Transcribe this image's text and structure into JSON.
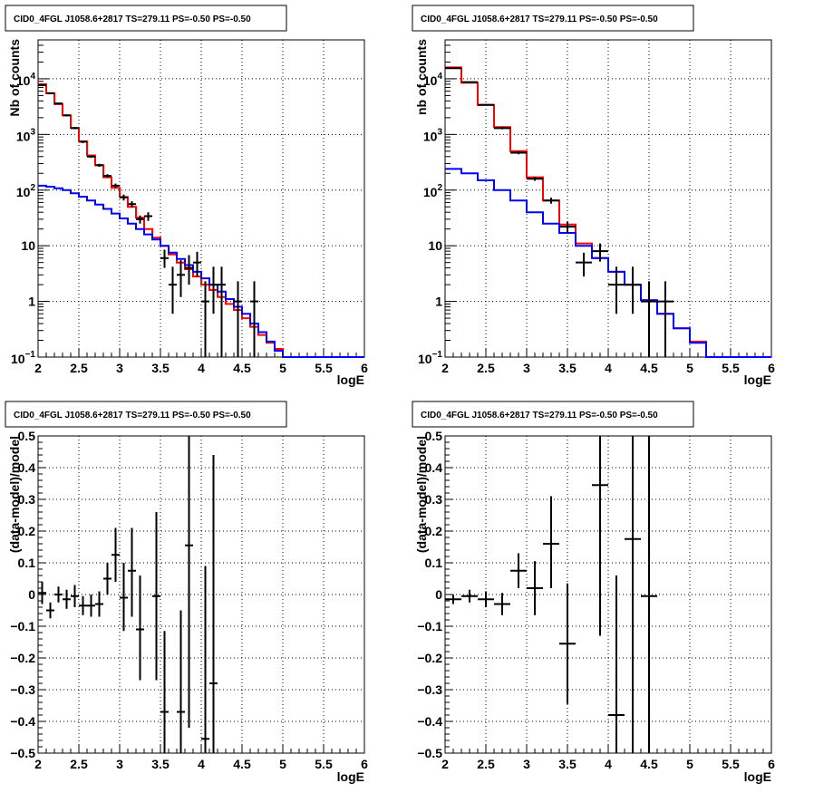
{
  "pads": [
    {
      "id": "pad-top-left",
      "title": "CID0_4FGL J1058.6+2817 TS=279.11 PS=-0.50 PS=-0.50",
      "chart_data": {
        "type": "histogram",
        "xlabel": "logE",
        "ylabel": "Nb of counts",
        "xlim": [
          2,
          6
        ],
        "ylim": [
          0.1,
          50000
        ],
        "log_y": true,
        "grid": true,
        "x_ticks": [
          "2",
          "2.5",
          "3",
          "3.5",
          "4",
          "4.5",
          "5",
          "5.5",
          "6"
        ],
        "y_ticks": [
          {
            "v": 0.1,
            "base": "10",
            "exp": "−1"
          },
          {
            "v": 1,
            "label": "1"
          },
          {
            "v": 10,
            "label": "10"
          },
          {
            "v": 100,
            "base": "10",
            "exp": "2"
          },
          {
            "v": 1000,
            "base": "10",
            "exp": "3"
          },
          {
            "v": 10000,
            "base": "10",
            "exp": "4"
          }
        ],
        "bin_edges": [
          2,
          2.1,
          2.2,
          2.3,
          2.4,
          2.5,
          2.6,
          2.7,
          2.8,
          2.9,
          3.0,
          3.1,
          3.2,
          3.3,
          3.4,
          3.5,
          3.6,
          3.7,
          3.8,
          3.9,
          4.0,
          4.1,
          4.2,
          4.3,
          4.4,
          4.5,
          4.6,
          4.7,
          4.8,
          4.9,
          5.0,
          5.1,
          5.2,
          5.3,
          5.4,
          5.5,
          5.6,
          5.7,
          5.8,
          5.9,
          6.0
        ],
        "series": [
          {
            "color": "#ff0000",
            "style": "step",
            "values": [
              8000,
              5500,
              3500,
              2200,
              1300,
              750,
              420,
              280,
              170,
              110,
              75,
              50,
              32,
              20,
              14,
              10,
              7,
              5,
              3.8,
              2.8,
              2.0,
              1.6,
              1.2,
              0.9,
              0.7,
              0.5,
              0.35,
              0.25,
              0.18,
              0.14,
              0.1,
              0.1,
              0.1,
              0.1,
              0.1,
              0.1,
              0.1,
              0.1,
              0.1,
              0.1
            ]
          },
          {
            "color": "#0000ff",
            "style": "step",
            "values": [
              120,
              115,
              108,
              100,
              88,
              76,
              65,
              55,
              46,
              38,
              31,
              25,
              20,
              16,
              13,
              10,
              7.5,
              5.8,
              4.5,
              3.4,
              2.6,
              2.0,
              1.5,
              1.1,
              0.8,
              0.6,
              0.4,
              0.28,
              0.19,
              0.13,
              0.1,
              0.1,
              0.1,
              0.1,
              0.1,
              0.1,
              0.1,
              0.1,
              0.1,
              0.1
            ]
          }
        ],
        "points": [
          {
            "x": 2.05,
            "y": 7700,
            "ylo": 7500,
            "yhi": 7900
          },
          {
            "x": 2.15,
            "y": 5500,
            "ylo": 5350,
            "yhi": 5650
          },
          {
            "x": 2.25,
            "y": 3600,
            "ylo": 3480,
            "yhi": 3720
          },
          {
            "x": 2.35,
            "y": 2200,
            "ylo": 2110,
            "yhi": 2290
          },
          {
            "x": 2.45,
            "y": 1300,
            "ylo": 1240,
            "yhi": 1360
          },
          {
            "x": 2.55,
            "y": 740,
            "ylo": 700,
            "yhi": 780
          },
          {
            "x": 2.65,
            "y": 400,
            "ylo": 380,
            "yhi": 420
          },
          {
            "x": 2.75,
            "y": 280,
            "ylo": 263,
            "yhi": 297
          },
          {
            "x": 2.85,
            "y": 180,
            "ylo": 167,
            "yhi": 193
          },
          {
            "x": 2.95,
            "y": 120,
            "ylo": 109,
            "yhi": 131
          },
          {
            "x": 3.05,
            "y": 74,
            "ylo": 65,
            "yhi": 83
          },
          {
            "x": 3.15,
            "y": 56,
            "ylo": 49,
            "yhi": 63
          },
          {
            "x": 3.25,
            "y": 30,
            "ylo": 25,
            "yhi": 35
          },
          {
            "x": 3.35,
            "y": 34,
            "ylo": 28,
            "yhi": 40
          },
          {
            "x": 3.55,
            "y": 6,
            "ylo": 4,
            "yhi": 8.5
          },
          {
            "x": 3.65,
            "y": 2,
            "ylo": 0.6,
            "yhi": 4.2
          },
          {
            "x": 3.75,
            "y": 3,
            "ylo": 1.2,
            "yhi": 5.5
          },
          {
            "x": 3.85,
            "y": 4,
            "ylo": 2,
            "yhi": 6.8
          },
          {
            "x": 3.95,
            "y": 5,
            "ylo": 2.8,
            "yhi": 7.8
          },
          {
            "x": 4.05,
            "y": 1,
            "ylo": 0.1,
            "yhi": 2.3
          },
          {
            "x": 4.15,
            "y": 2,
            "ylo": 0.6,
            "yhi": 4.2
          },
          {
            "x": 4.25,
            "y": 2,
            "ylo": 0.1,
            "yhi": 4.2
          },
          {
            "x": 4.45,
            "y": 1,
            "ylo": 0.1,
            "yhi": 2.3
          },
          {
            "x": 4.65,
            "y": 1,
            "ylo": 0.1,
            "yhi": 2.3
          }
        ]
      }
    },
    {
      "id": "pad-top-right",
      "title": "CID0_4FGL J1058.6+2817 TS=279.11 PS=-0.50 PS=-0.50",
      "chart_data": {
        "type": "histogram",
        "xlabel": "logE",
        "ylabel": "nb of counts",
        "xlim": [
          2,
          6
        ],
        "ylim": [
          0.1,
          50000
        ],
        "log_y": true,
        "grid": true,
        "x_ticks": [
          "2",
          "2.5",
          "3",
          "3.5",
          "4",
          "4.5",
          "5",
          "5.5",
          "6"
        ],
        "y_ticks": [
          {
            "v": 0.1,
            "base": "10",
            "exp": "−1"
          },
          {
            "v": 1,
            "label": "1"
          },
          {
            "v": 10,
            "label": "10"
          },
          {
            "v": 100,
            "base": "10",
            "exp": "2"
          },
          {
            "v": 1000,
            "base": "10",
            "exp": "3"
          },
          {
            "v": 10000,
            "base": "10",
            "exp": "4"
          }
        ],
        "bin_edges": [
          2,
          2.2,
          2.4,
          2.6,
          2.8,
          3.0,
          3.2,
          3.4,
          3.6,
          3.8,
          4.0,
          4.2,
          4.4,
          4.6,
          4.8,
          5.0,
          5.2,
          5.4,
          5.6,
          5.8,
          6.0
        ],
        "series": [
          {
            "color": "#ff0000",
            "style": "step",
            "values": [
              16000,
              8500,
              3400,
              1350,
              500,
              170,
              65,
              24,
              11,
              6,
              3.4,
              2.0,
              1.05,
              0.6,
              0.33,
              0.19,
              0.1,
              0.1,
              0.1,
              0.1
            ]
          },
          {
            "color": "#0000ff",
            "style": "step",
            "values": [
              240,
              200,
              150,
              100,
              65,
              40,
              25,
              17,
              10,
              6,
              3.4,
              2.0,
              1.05,
              0.6,
              0.33,
              0.18,
              0.1,
              0.1,
              0.1,
              0.1
            ]
          }
        ],
        "points": [
          {
            "x": 2.1,
            "y": 15500,
            "ylo": 15250,
            "yhi": 15750
          },
          {
            "x": 2.3,
            "y": 8700,
            "ylo": 8510,
            "yhi": 8890
          },
          {
            "x": 2.5,
            "y": 3400,
            "ylo": 3280,
            "yhi": 3520
          },
          {
            "x": 2.7,
            "y": 1300,
            "ylo": 1240,
            "yhi": 1360
          },
          {
            "x": 2.9,
            "y": 470,
            "ylo": 440,
            "yhi": 500
          },
          {
            "x": 3.1,
            "y": 160,
            "ylo": 147,
            "yhi": 173
          },
          {
            "x": 3.3,
            "y": 65,
            "ylo": 57,
            "yhi": 73
          },
          {
            "x": 3.5,
            "y": 22,
            "ylo": 17,
            "yhi": 27
          },
          {
            "x": 3.7,
            "y": 5,
            "ylo": 2.8,
            "yhi": 7.5
          },
          {
            "x": 3.9,
            "y": 8,
            "ylo": 5.2,
            "yhi": 11
          },
          {
            "x": 4.1,
            "y": 2,
            "ylo": 0.6,
            "yhi": 4.2
          },
          {
            "x": 4.3,
            "y": 2,
            "ylo": 0.6,
            "yhi": 4.2
          },
          {
            "x": 4.5,
            "y": 1,
            "ylo": 0.1,
            "yhi": 2.3
          },
          {
            "x": 4.7,
            "y": 1,
            "ylo": 0.1,
            "yhi": 2.3
          }
        ]
      }
    },
    {
      "id": "pad-bottom-left",
      "title": "CID0_4FGL J1058.6+2817 TS=279.11 PS=-0.50 PS=-0.50",
      "chart_data": {
        "type": "scatter",
        "xlabel": "logE",
        "ylabel": "(data-model)/model",
        "xlim": [
          2,
          6
        ],
        "ylim": [
          -0.5,
          0.5
        ],
        "log_y": false,
        "grid": true,
        "x_ticks": [
          "2",
          "2.5",
          "3",
          "3.5",
          "4",
          "4.5",
          "5",
          "5.5",
          "6"
        ],
        "y_ticks": [
          {
            "v": -0.5,
            "label": "−0.5"
          },
          {
            "v": -0.4,
            "label": "−0.4"
          },
          {
            "v": -0.3,
            "label": "−0.3"
          },
          {
            "v": -0.2,
            "label": "−0.2"
          },
          {
            "v": -0.1,
            "label": "−0.1"
          },
          {
            "v": 0,
            "label": "0"
          },
          {
            "v": 0.1,
            "label": "0.1"
          },
          {
            "v": 0.2,
            "label": "0.2"
          },
          {
            "v": 0.3,
            "label": "0.3"
          },
          {
            "v": 0.4,
            "label": "0.4"
          },
          {
            "v": 0.5,
            "label": "0.5"
          }
        ],
        "points": [
          {
            "x": 2.05,
            "y": 0.005,
            "ylo": -0.03,
            "yhi": 0.04,
            "xw": 0.05
          },
          {
            "x": 2.15,
            "y": -0.05,
            "ylo": -0.075,
            "yhi": -0.025,
            "xw": 0.05
          },
          {
            "x": 2.25,
            "y": 0.0,
            "ylo": -0.025,
            "yhi": 0.025,
            "xw": 0.05
          },
          {
            "x": 2.35,
            "y": -0.015,
            "ylo": -0.045,
            "yhi": 0.015,
            "xw": 0.05
          },
          {
            "x": 2.45,
            "y": -0.005,
            "ylo": -0.04,
            "yhi": 0.03,
            "xw": 0.05
          },
          {
            "x": 2.55,
            "y": -0.035,
            "ylo": -0.065,
            "yhi": -0.005,
            "xw": 0.05
          },
          {
            "x": 2.65,
            "y": -0.035,
            "ylo": -0.07,
            "yhi": 0.0,
            "xw": 0.05
          },
          {
            "x": 2.75,
            "y": -0.03,
            "ylo": -0.07,
            "yhi": 0.01,
            "xw": 0.05
          },
          {
            "x": 2.85,
            "y": 0.05,
            "ylo": 0.0,
            "yhi": 0.1,
            "xw": 0.05
          },
          {
            "x": 2.95,
            "y": 0.125,
            "ylo": 0.04,
            "yhi": 0.21,
            "xw": 0.05
          },
          {
            "x": 3.05,
            "y": -0.01,
            "ylo": -0.115,
            "yhi": 0.1,
            "xw": 0.05
          },
          {
            "x": 3.15,
            "y": 0.075,
            "ylo": -0.07,
            "yhi": 0.21,
            "xw": 0.05
          },
          {
            "x": 3.25,
            "y": -0.11,
            "ylo": -0.27,
            "yhi": 0.06,
            "xw": 0.05
          },
          {
            "x": 3.45,
            "y": -0.005,
            "ylo": -0.27,
            "yhi": 0.26,
            "xw": 0.05
          },
          {
            "x": 3.55,
            "y": -0.37,
            "ylo": -0.5,
            "yhi": -0.115,
            "xw": 0.05
          },
          {
            "x": 3.75,
            "y": -0.37,
            "ylo": -0.5,
            "yhi": -0.05,
            "xw": 0.05
          },
          {
            "x": 3.85,
            "y": 0.155,
            "ylo": -0.42,
            "yhi": 0.5,
            "xw": 0.05
          },
          {
            "x": 4.05,
            "y": -0.455,
            "ylo": -0.5,
            "yhi": 0.09,
            "xw": 0.05
          },
          {
            "x": 4.15,
            "y": -0.28,
            "ylo": -0.5,
            "yhi": 0.44,
            "xw": 0.05
          }
        ]
      }
    },
    {
      "id": "pad-bottom-right",
      "title": "CID0_4FGL J1058.6+2817 TS=279.11 PS=-0.50 PS=-0.50",
      "chart_data": {
        "type": "scatter",
        "xlabel": "logE",
        "ylabel": "(data-model)/model",
        "xlim": [
          2,
          6
        ],
        "ylim": [
          -0.5,
          0.5
        ],
        "log_y": false,
        "grid": true,
        "x_ticks": [
          "2",
          "2.5",
          "3",
          "3.5",
          "4",
          "4.5",
          "5",
          "5.5",
          "6"
        ],
        "y_ticks": [
          {
            "v": -0.5,
            "label": "−0.5"
          },
          {
            "v": -0.4,
            "label": "−0.4"
          },
          {
            "v": -0.3,
            "label": "−0.3"
          },
          {
            "v": -0.2,
            "label": "−0.2"
          },
          {
            "v": -0.1,
            "label": "−0.1"
          },
          {
            "v": 0,
            "label": "0"
          },
          {
            "v": 0.1,
            "label": "0.1"
          },
          {
            "v": 0.2,
            "label": "0.2"
          },
          {
            "v": 0.3,
            "label": "0.3"
          },
          {
            "v": 0.4,
            "label": "0.4"
          },
          {
            "v": 0.5,
            "label": "0.5"
          }
        ],
        "points": [
          {
            "x": 2.1,
            "y": -0.015,
            "ylo": -0.03,
            "yhi": 0.0,
            "xw": 0.1
          },
          {
            "x": 2.3,
            "y": -0.005,
            "ylo": -0.025,
            "yhi": 0.015,
            "xw": 0.1
          },
          {
            "x": 2.5,
            "y": -0.015,
            "ylo": -0.04,
            "yhi": 0.01,
            "xw": 0.1
          },
          {
            "x": 2.7,
            "y": -0.03,
            "ylo": -0.065,
            "yhi": 0.005,
            "xw": 0.1
          },
          {
            "x": 2.9,
            "y": 0.075,
            "ylo": 0.02,
            "yhi": 0.13,
            "xw": 0.1
          },
          {
            "x": 3.1,
            "y": 0.02,
            "ylo": -0.065,
            "yhi": 0.105,
            "xw": 0.1
          },
          {
            "x": 3.3,
            "y": 0.16,
            "ylo": 0.02,
            "yhi": 0.31,
            "xw": 0.1
          },
          {
            "x": 3.5,
            "y": -0.155,
            "ylo": -0.345,
            "yhi": 0.035,
            "xw": 0.1
          },
          {
            "x": 3.9,
            "y": 0.345,
            "ylo": -0.13,
            "yhi": 0.5,
            "xw": 0.1
          },
          {
            "x": 4.1,
            "y": -0.38,
            "ylo": -0.5,
            "yhi": 0.06,
            "xw": 0.1
          },
          {
            "x": 4.3,
            "y": 0.175,
            "ylo": -0.5,
            "yhi": 0.5,
            "xw": 0.1
          },
          {
            "x": 4.5,
            "y": -0.005,
            "ylo": -0.5,
            "yhi": 0.5,
            "xw": 0.1
          }
        ]
      }
    }
  ]
}
